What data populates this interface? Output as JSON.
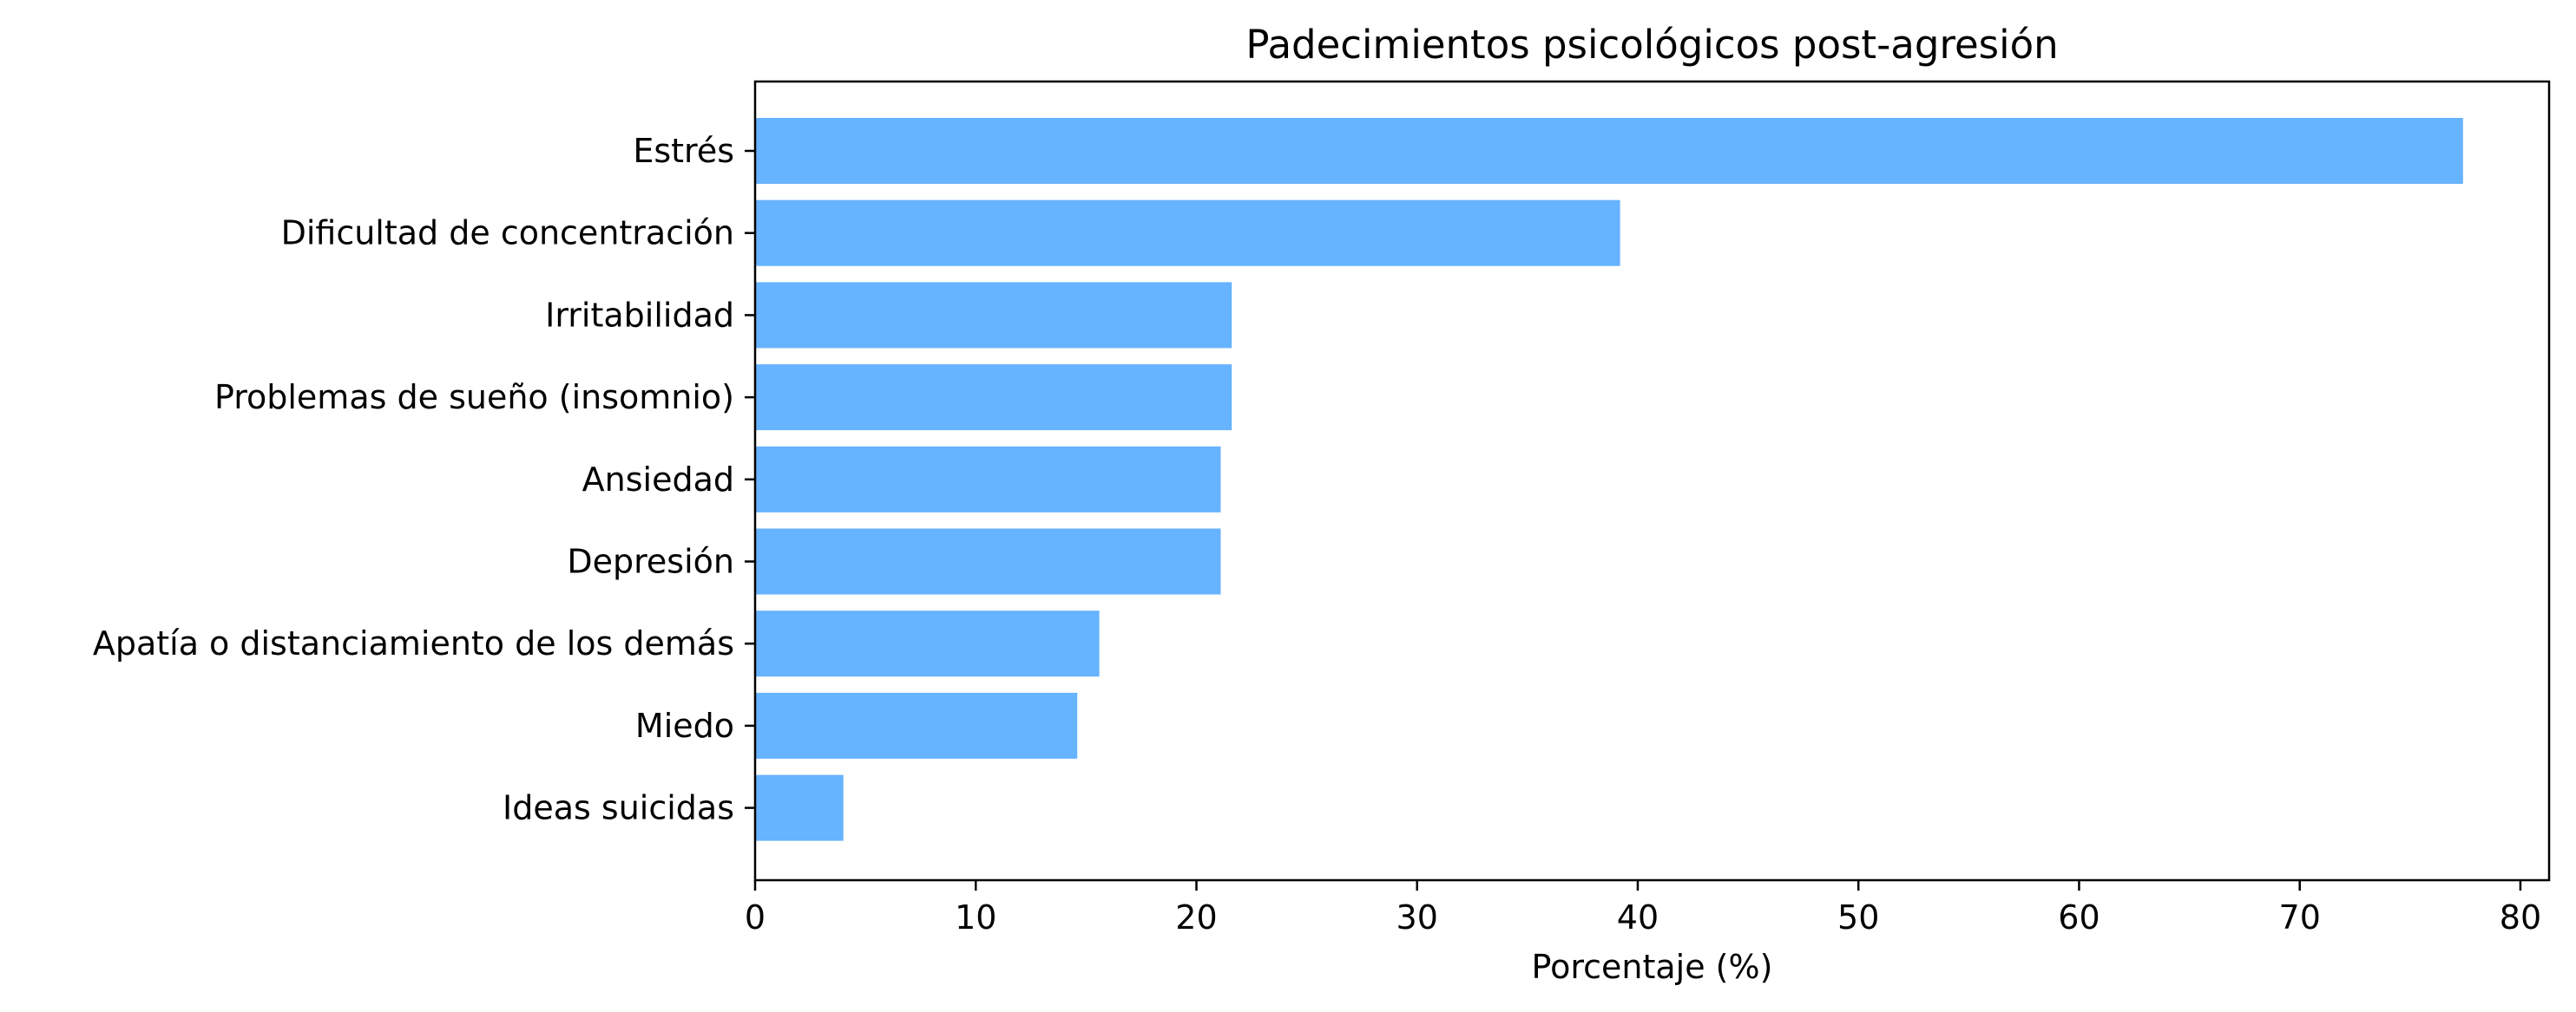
{
  "chart_data": {
    "type": "bar",
    "orientation": "horizontal",
    "title": "Padecimientos psicológicos post-agresión",
    "xlabel": "Porcentaje (%)",
    "ylabel": "",
    "categories": [
      "Estrés",
      "Dificultad de concentración",
      "Irritabilidad",
      "Problemas de sueño (insomnio)",
      "Ansiedad",
      "Depresión",
      "Apatía o distanciamiento de los demás",
      "Miedo",
      "Ideas suicidas"
    ],
    "values": [
      77.4,
      39.2,
      21.6,
      21.6,
      21.1,
      21.1,
      15.6,
      14.6,
      4.0
    ],
    "xlim": [
      0,
      81.3
    ],
    "xticks": [
      0,
      10,
      20,
      30,
      40,
      50,
      60,
      70,
      80
    ],
    "grid": false,
    "legend": "none",
    "bar_color": "#66b3ff"
  }
}
